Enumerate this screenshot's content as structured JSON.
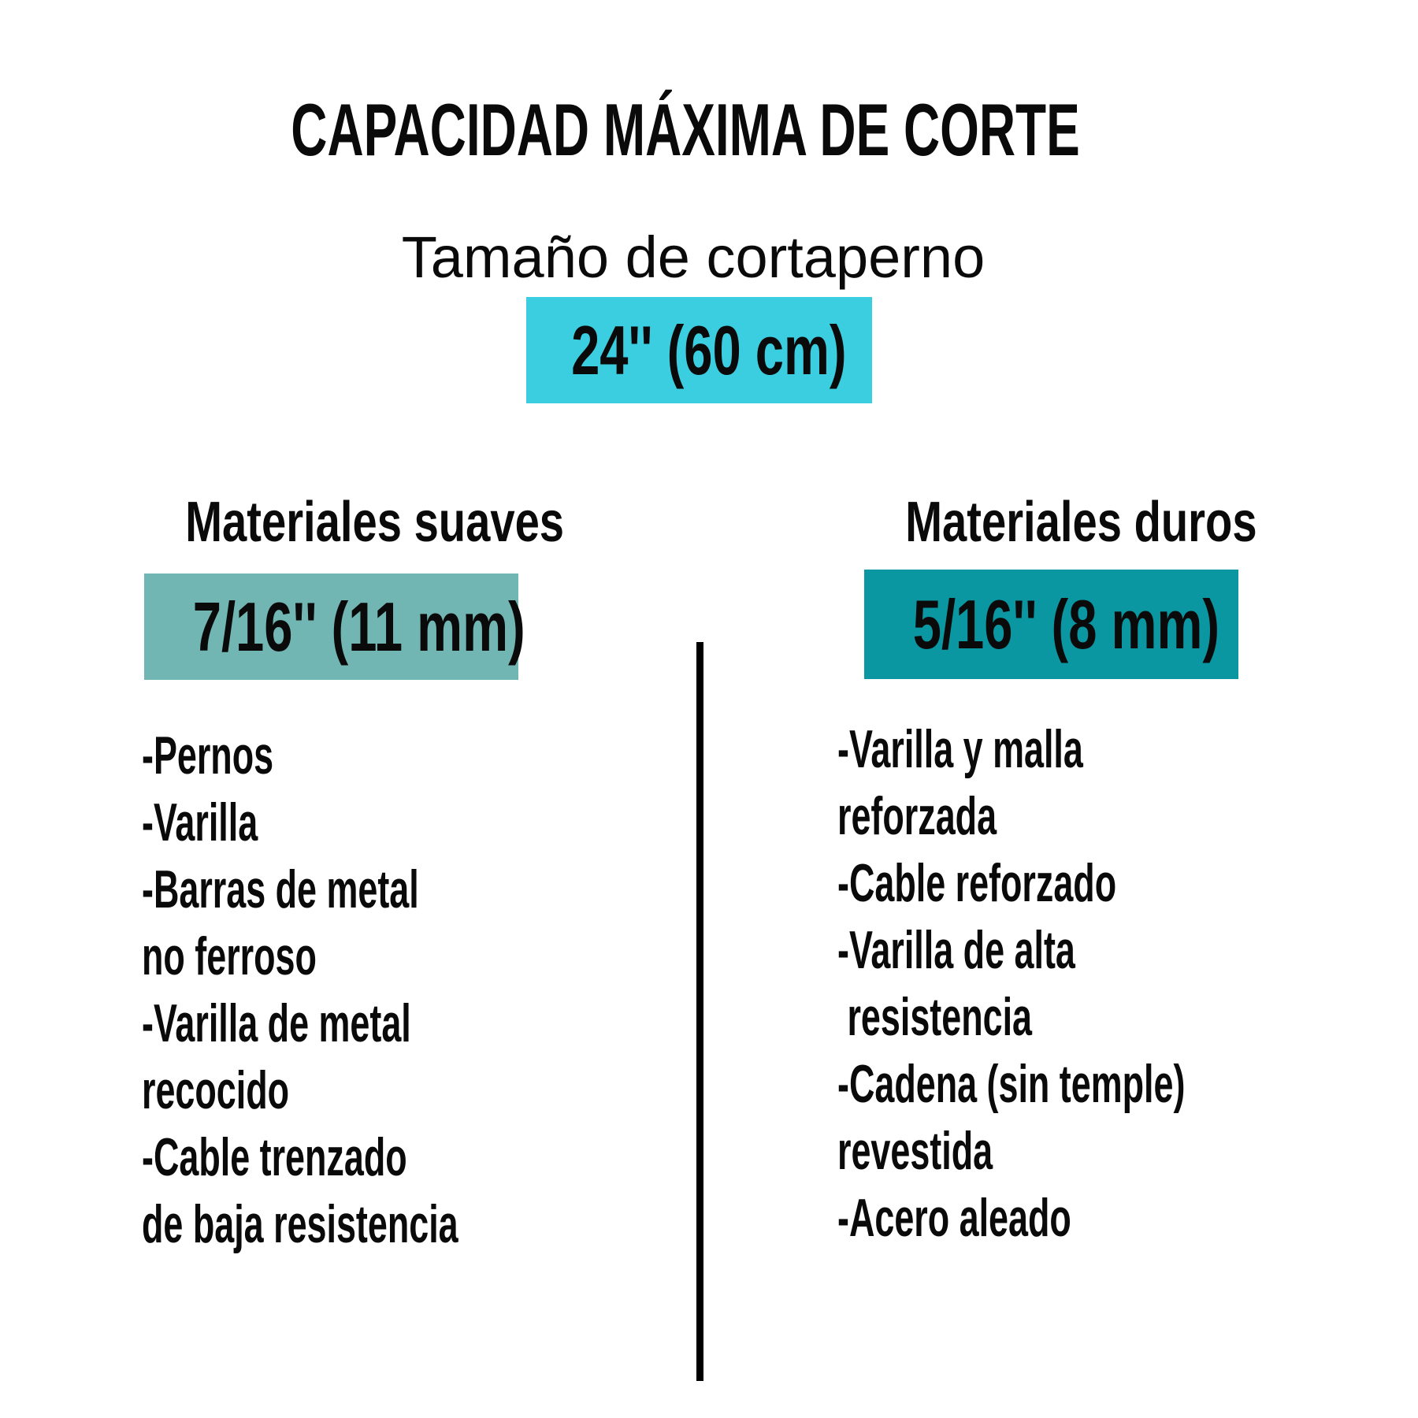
{
  "background": "#FFFFFF",
  "text_color": "#0A0A0A",
  "title": "CAPACIDAD MÁXIMA DE CORTE",
  "subtitle": "Tamaño de cortaperno",
  "size_badge": {
    "label": "24'' (60 cm)",
    "bg": "#3BCEE0"
  },
  "columns": [
    {
      "header": "Materiales suaves",
      "badge": {
        "label": "7/16'' (11 mm)",
        "bg": "#72B6B3"
      },
      "lines": [
        "-Pernos",
        "-Varilla",
        "-Barras de metal",
        "no ferroso",
        "-Varilla de metal",
        "recocido",
        "-Cable trenzado",
        "de baja resistencia"
      ]
    },
    {
      "header": "Materiales duros",
      "badge": {
        "label": "5/16'' (8 mm)",
        "bg": "#0B97A1"
      },
      "lines": [
        "-Varilla y malla",
        "reforzada",
        "-Cable reforzado",
        "-Varilla de alta",
        " resistencia",
        "-Cadena (sin temple)",
        "revestida",
        "-Acero aleado"
      ]
    }
  ],
  "divider": {
    "color": "#000000"
  }
}
